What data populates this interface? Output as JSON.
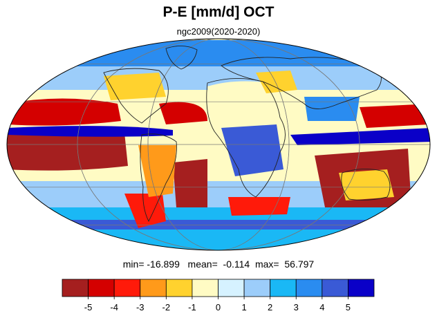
{
  "title": "P-E [mm/d] OCT",
  "subtitle": "ngc2009(2020-2020)",
  "stats": {
    "min_label": "min=",
    "min_value": "-16.899",
    "mean_label": "mean=",
    "mean_value": "-0.114",
    "max_label": "max=",
    "max_value": "56.797"
  },
  "colorbar": {
    "colors": [
      "#a51f1f",
      "#d40000",
      "#ff1a0a",
      "#ff9a1a",
      "#ffd22e",
      "#fffbc4",
      "#d6f2ff",
      "#9ccdfa",
      "#1ab8f5",
      "#2a8cf0",
      "#3a5ad6",
      "#0a00c8"
    ],
    "tick_labels": [
      "-5",
      "-4",
      "-3",
      "-2",
      "-1",
      "0",
      "1",
      "2",
      "3",
      "4",
      "5"
    ]
  },
  "map": {
    "projection": "mollweide",
    "ocean_background": "#fffbc4",
    "graticule_lon_step": 60,
    "graticule_lat_step": 30
  }
}
